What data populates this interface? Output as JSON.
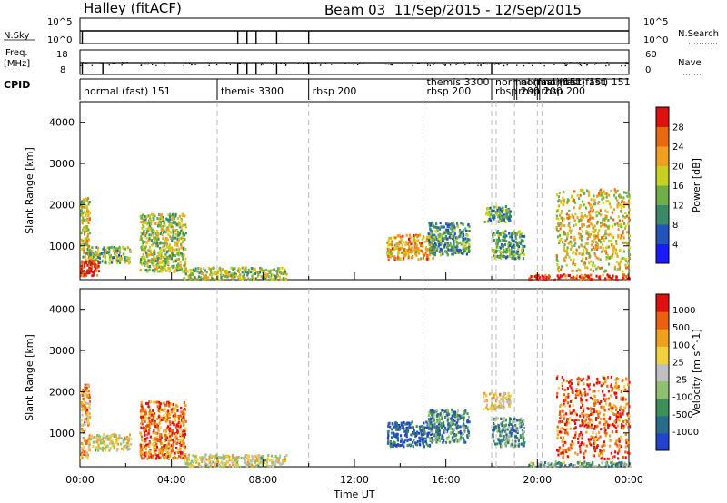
{
  "header": {
    "station": "Halley (fitACF)",
    "beam_date": "Beam 03  11/Sep/2015 - 12/Sep/2015"
  },
  "top_panels": {
    "nsky": {
      "label": "N.Sky",
      "right_label": "N.Search",
      "left_ticks": [
        "10^5",
        "10^0"
      ],
      "right_ticks": [
        "10^5",
        "10^0"
      ]
    },
    "freq": {
      "label_line1": "Freq.",
      "label_line2": "[MHz]",
      "right_label": "Nave",
      "left_ticks": [
        "18",
        "8"
      ],
      "right_ticks": [
        "60",
        "0"
      ]
    },
    "cpid": {
      "label": "CPID",
      "modes": [
        {
          "label": "normal (fast) 151",
          "start_hour": 0.0
        },
        {
          "label": "themis 3300",
          "start_hour": 6.0
        },
        {
          "label": "rbsp 200",
          "start_hour": 10.0
        },
        {
          "label": "themis 3300",
          "start_hour": 15.0
        },
        {
          "label": "rbsp 200",
          "start_hour": 15.0
        },
        {
          "label": "rbsp 200",
          "start_hour": 18.0
        },
        {
          "label": "normal (fast) 151",
          "start_hour": 18.0
        },
        {
          "label": "rbsp 200",
          "start_hour": 19.0
        },
        {
          "label": "normal (fast) 151",
          "start_hour": 19.1
        },
        {
          "label": "rbsp 200",
          "start_hour": 20.0
        },
        {
          "label": "normal (fast) 151",
          "start_hour": 20.1
        }
      ]
    }
  },
  "chart_data": [
    {
      "type": "heatmap",
      "name": "power",
      "xlabel": "",
      "ylabel": "Slant Range [km]",
      "xlim": [
        0,
        24
      ],
      "ylim": [
        180,
        4500
      ],
      "yticks": [
        1000,
        2000,
        3000,
        4000
      ],
      "colorbar": {
        "label": "Power [dB]",
        "ticks": [
          "4",
          "8",
          "12",
          "16",
          "20",
          "24",
          "28"
        ],
        "range": [
          0,
          30
        ],
        "colors": [
          "#1a1aff",
          "#2255bb",
          "#3a8a6a",
          "#6fae4a",
          "#c8d020",
          "#f0a020",
          "#e86a10",
          "#e01010"
        ]
      },
      "regions": [
        {
          "t0": 0.0,
          "t1": 0.4,
          "r0": 400,
          "r1": 2200,
          "level": 0.55
        },
        {
          "t0": 0.3,
          "t1": 2.2,
          "r0": 600,
          "r1": 1000,
          "level": 0.45
        },
        {
          "t0": 2.6,
          "t1": 4.6,
          "r0": 400,
          "r1": 1800,
          "level": 0.5
        },
        {
          "t0": 0.0,
          "t1": 0.8,
          "r0": 300,
          "r1": 700,
          "level": 0.95
        },
        {
          "t0": 4.5,
          "t1": 9.0,
          "r0": 200,
          "r1": 500,
          "level": 0.5
        },
        {
          "t0": 13.4,
          "t1": 15.4,
          "r0": 700,
          "r1": 1300,
          "level": 0.7
        },
        {
          "t0": 15.2,
          "t1": 17.0,
          "r0": 800,
          "r1": 1600,
          "level": 0.35
        },
        {
          "t0": 17.6,
          "t1": 18.8,
          "r0": 1600,
          "r1": 2000,
          "level": 0.35
        },
        {
          "t0": 18.0,
          "t1": 19.4,
          "r0": 700,
          "r1": 1400,
          "level": 0.4
        },
        {
          "t0": 20.8,
          "t1": 24.0,
          "r0": 400,
          "r1": 2400,
          "level": 0.6
        },
        {
          "t0": 19.6,
          "t1": 24.0,
          "r0": 200,
          "r1": 330,
          "level": 0.9
        }
      ]
    },
    {
      "type": "heatmap",
      "name": "velocity",
      "xlabel": "Time UT",
      "ylabel": "Slant Range [km]",
      "xlim": [
        0,
        24
      ],
      "ylim": [
        180,
        4500
      ],
      "yticks": [
        1000,
        2000,
        3000,
        4000
      ],
      "xticks": [
        "00:00",
        "04:00",
        "08:00",
        "12:00",
        "16:00",
        "20:00",
        "00:00"
      ],
      "colorbar": {
        "label": "Velocity [m s^-1]",
        "ticks": [
          "1000",
          "500",
          "100",
          "25",
          "-25",
          "-100",
          "-500",
          "-1000"
        ],
        "range": [
          -1000,
          1000
        ],
        "colors": [
          "#2244cc",
          "#2a6a8a",
          "#3f8f5a",
          "#8fc070",
          "#c0c0c0",
          "#f0d040",
          "#f0a020",
          "#e86010",
          "#e01010"
        ]
      },
      "regions": [
        {
          "t0": 0.0,
          "t1": 0.4,
          "r0": 400,
          "r1": 2200,
          "level": 0.7
        },
        {
          "t0": 0.3,
          "t1": 2.2,
          "r0": 600,
          "r1": 1000,
          "level": 0.55
        },
        {
          "t0": 2.6,
          "t1": 4.6,
          "r0": 400,
          "r1": 1800,
          "level": 0.8
        },
        {
          "t0": 4.5,
          "t1": 9.0,
          "r0": 200,
          "r1": 500,
          "level": 0.55
        },
        {
          "t0": 13.4,
          "t1": 15.4,
          "r0": 700,
          "r1": 1300,
          "level": 0.1
        },
        {
          "t0": 15.2,
          "t1": 17.0,
          "r0": 800,
          "r1": 1600,
          "level": 0.25
        },
        {
          "t0": 17.6,
          "t1": 18.8,
          "r0": 1600,
          "r1": 2000,
          "level": 0.6
        },
        {
          "t0": 18.0,
          "t1": 19.4,
          "r0": 700,
          "r1": 1400,
          "level": 0.3
        },
        {
          "t0": 20.8,
          "t1": 24.0,
          "r0": 400,
          "r1": 2400,
          "level": 0.85
        },
        {
          "t0": 19.6,
          "t1": 24.0,
          "r0": 200,
          "r1": 330,
          "level": 0.35
        }
      ]
    }
  ],
  "mode_change_hours": [
    6.0,
    10.0,
    15.0,
    18.0,
    18.2,
    19.0,
    20.0,
    20.2
  ],
  "nsky_drops_hours": [
    0.1,
    6.9,
    7.3,
    7.7,
    8.6,
    10.0
  ],
  "freq_drops_hours": [
    0.1,
    1.0,
    6.9,
    7.3,
    7.7,
    8.6,
    10.0,
    18.0
  ]
}
